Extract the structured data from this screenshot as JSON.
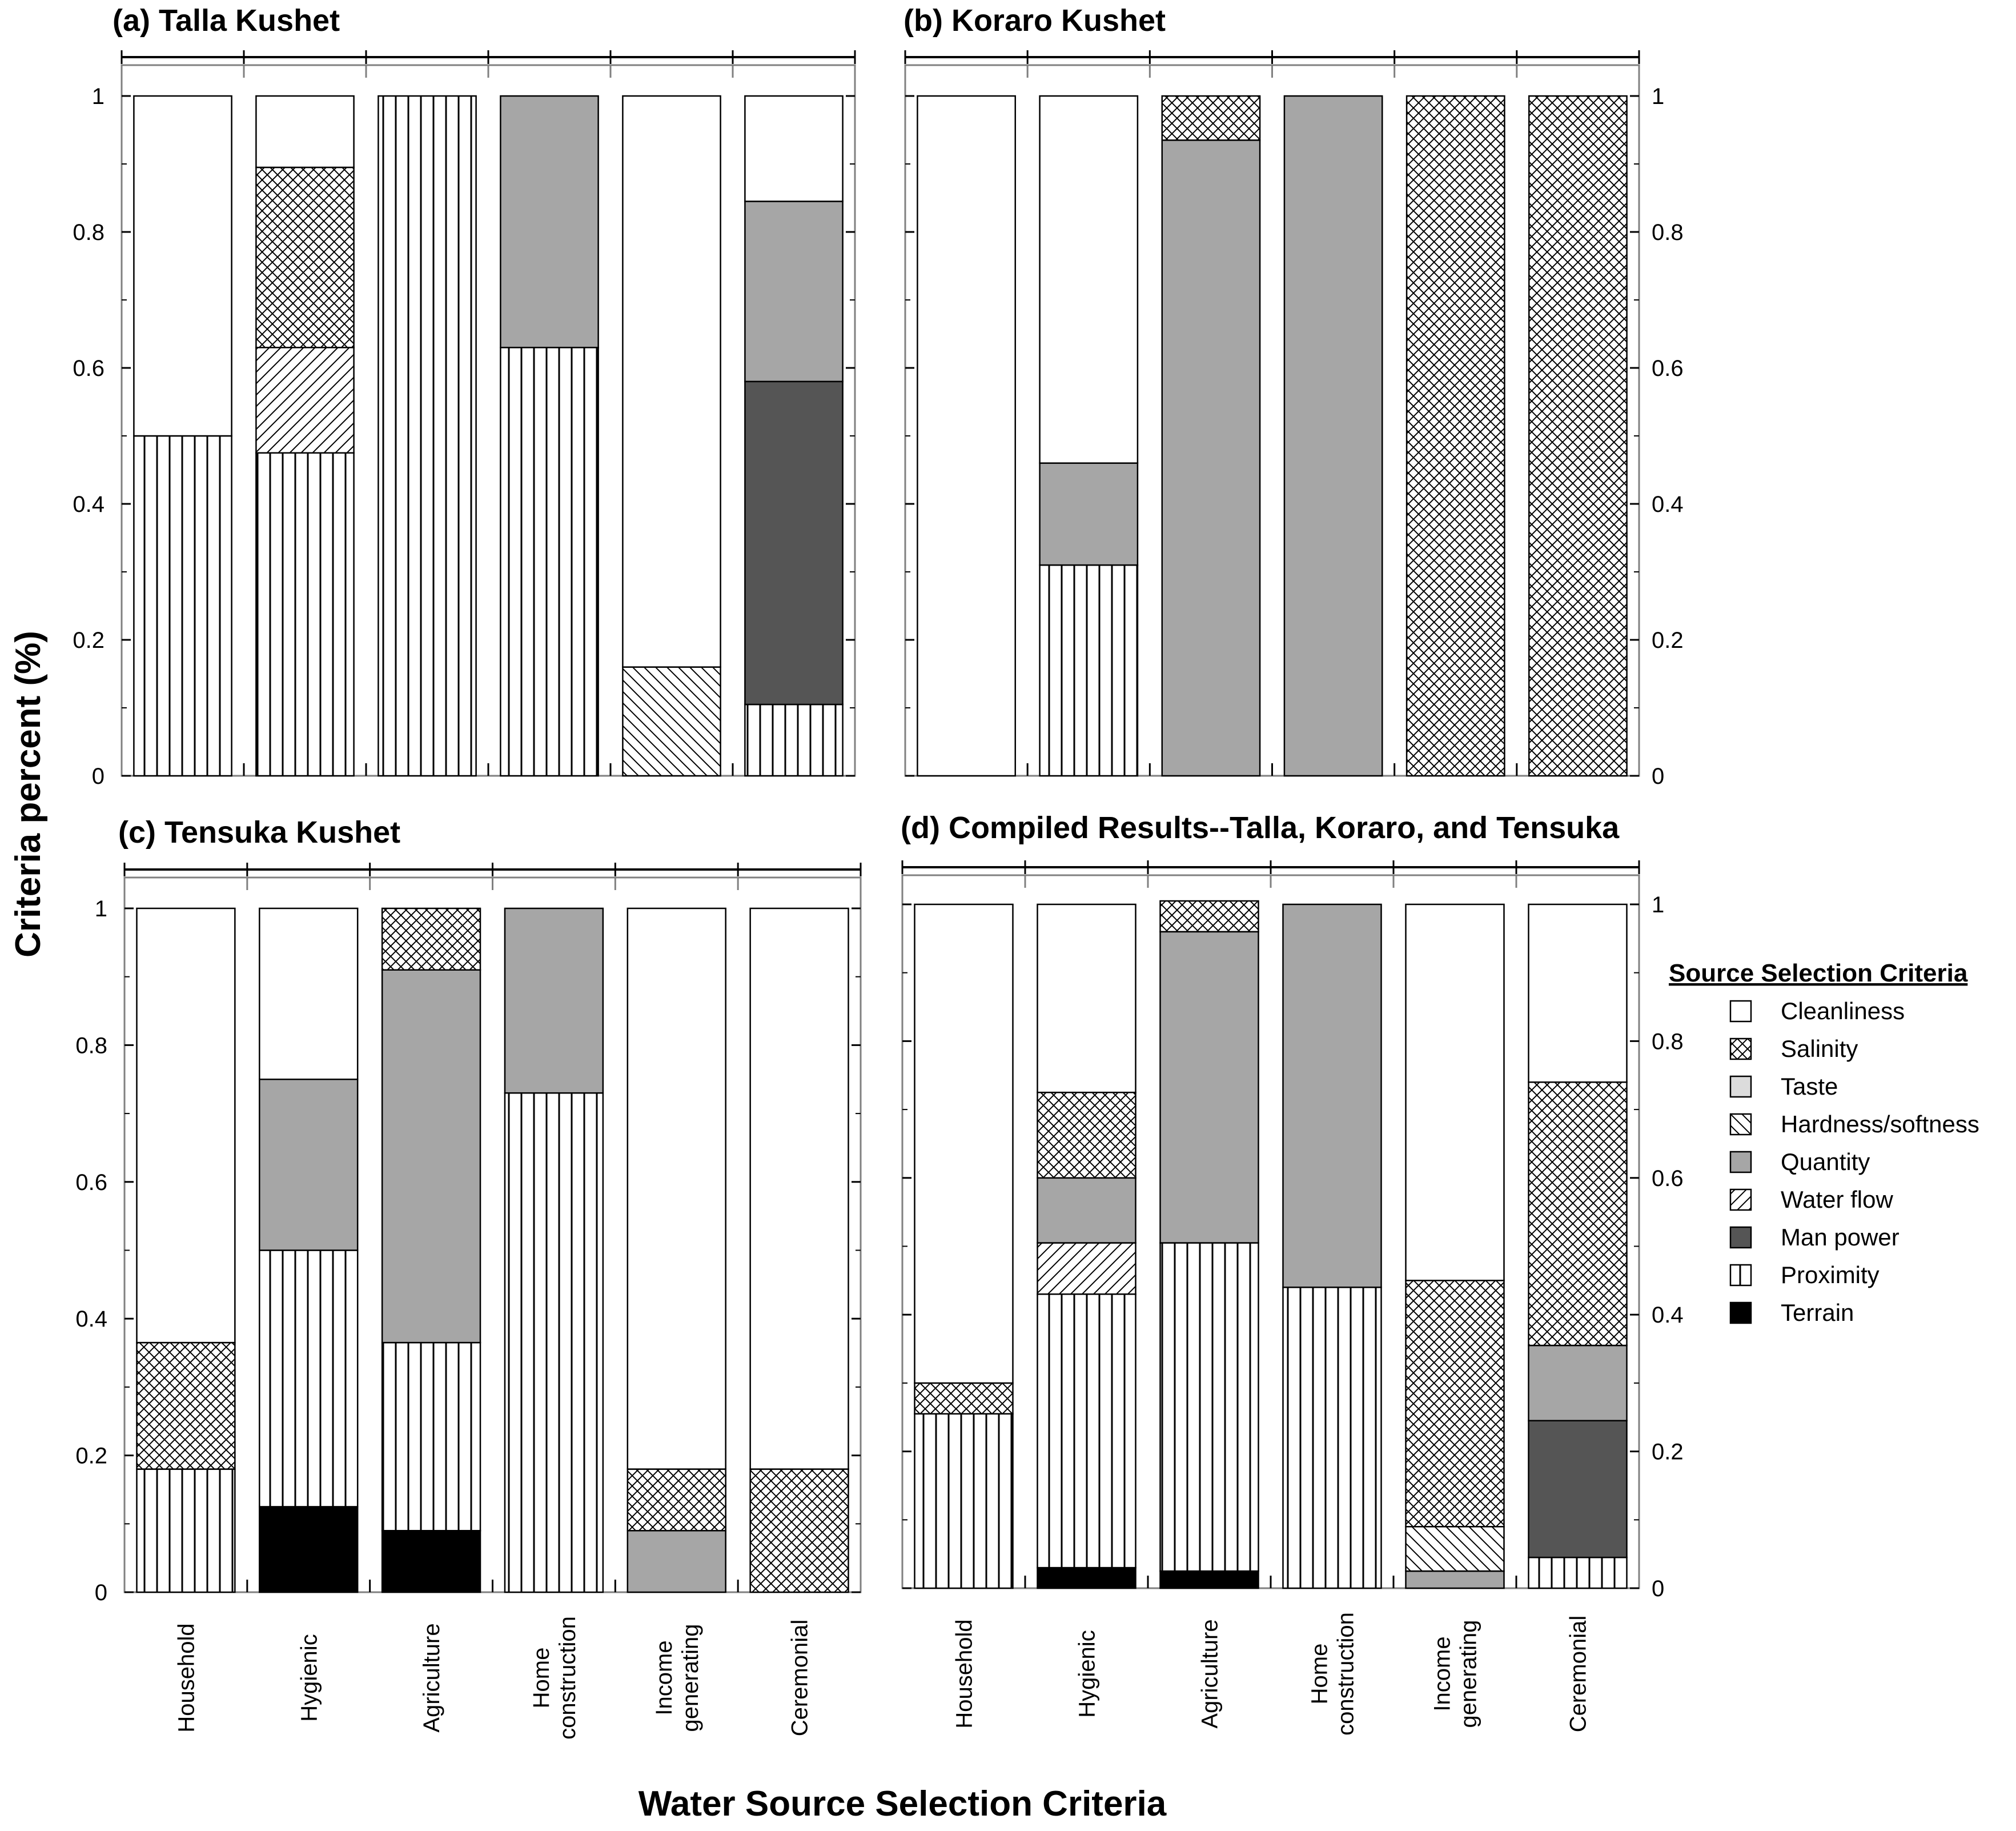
{
  "figure": {
    "xlabel": "Water Source Selection Criteria",
    "ylabel": "Criteria percent (%)"
  },
  "categories": [
    "Household",
    "Hygienic",
    "Agriculture",
    "Home construction",
    "Income generating",
    "Ceremonial"
  ],
  "category_lines": [
    [
      "Household"
    ],
    [
      "Hygienic"
    ],
    [
      "Agriculture"
    ],
    [
      "Home",
      "construction"
    ],
    [
      "Income",
      "generating"
    ],
    [
      "Ceremonial"
    ]
  ],
  "yticks": [
    "0",
    "0.2",
    "0.4",
    "0.6",
    "0.8",
    "1"
  ],
  "legend": {
    "title": "Source Selection Criteria",
    "items": [
      {
        "name": "Cleanliness",
        "fill": "#ffffff",
        "pattern": "none"
      },
      {
        "name": "Salinity",
        "fill": "#ffffff",
        "pattern": "crosshatch"
      },
      {
        "name": "Taste",
        "fill": "#dcdcdc",
        "pattern": "none"
      },
      {
        "name": "Hardness/softness",
        "fill": "#ffffff",
        "pattern": "diag-back"
      },
      {
        "name": "Quantity",
        "fill": "#a6a6a6",
        "pattern": "none"
      },
      {
        "name": "Water flow",
        "fill": "#ffffff",
        "pattern": "diag-fwd"
      },
      {
        "name": "Man power",
        "fill": "#555555",
        "pattern": "none"
      },
      {
        "name": "Proximity",
        "fill": "#ffffff",
        "pattern": "vertical"
      },
      {
        "name": "Terrain",
        "fill": "#000000",
        "pattern": "none"
      }
    ]
  },
  "chart_data": [
    {
      "type": "bar",
      "stacked": true,
      "title": "(a) Talla Kushet",
      "categories": [
        "Household",
        "Hygienic",
        "Agriculture",
        "Home construction",
        "Income generating",
        "Ceremonial"
      ],
      "ylim": [
        0,
        1
      ],
      "series": [
        {
          "name": "Terrain",
          "values": [
            0,
            0,
            0,
            0,
            0,
            0
          ]
        },
        {
          "name": "Proximity",
          "values": [
            0.5,
            0.475,
            1.0,
            0.63,
            0,
            0.105
          ]
        },
        {
          "name": "Man power",
          "values": [
            0,
            0,
            0,
            0,
            0,
            0.475
          ]
        },
        {
          "name": "Water flow",
          "values": [
            0,
            0.155,
            0,
            0,
            0,
            0
          ]
        },
        {
          "name": "Quantity",
          "values": [
            0,
            0,
            0,
            0.37,
            0,
            0.265
          ]
        },
        {
          "name": "Hardness/softness",
          "values": [
            0,
            0,
            0,
            0,
            0.16,
            0
          ]
        },
        {
          "name": "Taste",
          "values": [
            0,
            0,
            0,
            0,
            0,
            0
          ]
        },
        {
          "name": "Salinity",
          "values": [
            0,
            0.265,
            0,
            0,
            0,
            0
          ]
        },
        {
          "name": "Cleanliness",
          "values": [
            0.5,
            0.105,
            0,
            0,
            0.84,
            0.155
          ]
        }
      ]
    },
    {
      "type": "bar",
      "stacked": true,
      "title": "(b) Koraro Kushet",
      "categories": [
        "Household",
        "Hygienic",
        "Agriculture",
        "Home construction",
        "Income generating",
        "Ceremonial"
      ],
      "ylim": [
        0,
        1
      ],
      "series": [
        {
          "name": "Terrain",
          "values": [
            0,
            0,
            0,
            0,
            0,
            0
          ]
        },
        {
          "name": "Proximity",
          "values": [
            0,
            0.31,
            0,
            0,
            0,
            0
          ]
        },
        {
          "name": "Man power",
          "values": [
            0,
            0,
            0,
            0,
            0,
            0
          ]
        },
        {
          "name": "Water flow",
          "values": [
            0,
            0,
            0,
            0,
            0,
            0
          ]
        },
        {
          "name": "Quantity",
          "values": [
            0,
            0.15,
            0.935,
            1.0,
            0,
            0
          ]
        },
        {
          "name": "Hardness/softness",
          "values": [
            0,
            0,
            0,
            0,
            0,
            0
          ]
        },
        {
          "name": "Taste",
          "values": [
            0,
            0,
            0,
            0,
            0,
            0
          ]
        },
        {
          "name": "Salinity",
          "values": [
            0,
            0,
            0.065,
            0,
            1.0,
            1.0
          ]
        },
        {
          "name": "Cleanliness",
          "values": [
            1.0,
            0.54,
            0,
            0,
            0,
            0
          ]
        }
      ]
    },
    {
      "type": "bar",
      "stacked": true,
      "title": "(c) Tensuka Kushet",
      "categories": [
        "Household",
        "Hygienic",
        "Agriculture",
        "Home construction",
        "Income generating",
        "Ceremonial"
      ],
      "ylim": [
        0,
        1
      ],
      "series": [
        {
          "name": "Terrain",
          "values": [
            0,
            0.125,
            0.09,
            0,
            0,
            0
          ]
        },
        {
          "name": "Proximity",
          "values": [
            0.18,
            0.375,
            0.275,
            0.73,
            0,
            0
          ]
        },
        {
          "name": "Man power",
          "values": [
            0,
            0,
            0,
            0,
            0,
            0
          ]
        },
        {
          "name": "Water flow",
          "values": [
            0,
            0,
            0,
            0,
            0,
            0
          ]
        },
        {
          "name": "Quantity",
          "values": [
            0,
            0.25,
            0.545,
            0.27,
            0.09,
            0
          ]
        },
        {
          "name": "Hardness/softness",
          "values": [
            0,
            0,
            0,
            0,
            0,
            0
          ]
        },
        {
          "name": "Taste",
          "values": [
            0,
            0,
            0,
            0,
            0,
            0
          ]
        },
        {
          "name": "Salinity",
          "values": [
            0.185,
            0,
            0.09,
            0,
            0.09,
            0.18
          ]
        },
        {
          "name": "Cleanliness",
          "values": [
            0.635,
            0.25,
            0,
            0,
            0.82,
            0.82
          ]
        }
      ]
    },
    {
      "type": "bar",
      "stacked": true,
      "title": "(d) Compiled Results--Talla, Koraro, and Tensuka",
      "categories": [
        "Household",
        "Hygienic",
        "Agriculture",
        "Home construction",
        "Income generating",
        "Ceremonial"
      ],
      "ylim": [
        0,
        1
      ],
      "series": [
        {
          "name": "Terrain",
          "values": [
            0,
            0.03,
            0.025,
            0,
            0,
            0
          ]
        },
        {
          "name": "Proximity",
          "values": [
            0.255,
            0.4,
            0.48,
            0.44,
            0,
            0.045
          ]
        },
        {
          "name": "Man power",
          "values": [
            0,
            0,
            0,
            0,
            0,
            0.2
          ]
        },
        {
          "name": "Water flow",
          "values": [
            0,
            0.075,
            0,
            0,
            0,
            0
          ]
        },
        {
          "name": "Quantity",
          "values": [
            0,
            0.095,
            0.455,
            0.56,
            0.025,
            0.11
          ]
        },
        {
          "name": "Hardness/softness",
          "values": [
            0,
            0,
            0,
            0,
            0.065,
            0
          ]
        },
        {
          "name": "Taste",
          "values": [
            0,
            0,
            0,
            0,
            0,
            0
          ]
        },
        {
          "name": "Salinity",
          "values": [
            0.045,
            0.125,
            0.045,
            0,
            0.36,
            0.385
          ]
        },
        {
          "name": "Cleanliness",
          "values": [
            0.7,
            0.275,
            0,
            0,
            0.55,
            0.26
          ]
        }
      ]
    }
  ]
}
